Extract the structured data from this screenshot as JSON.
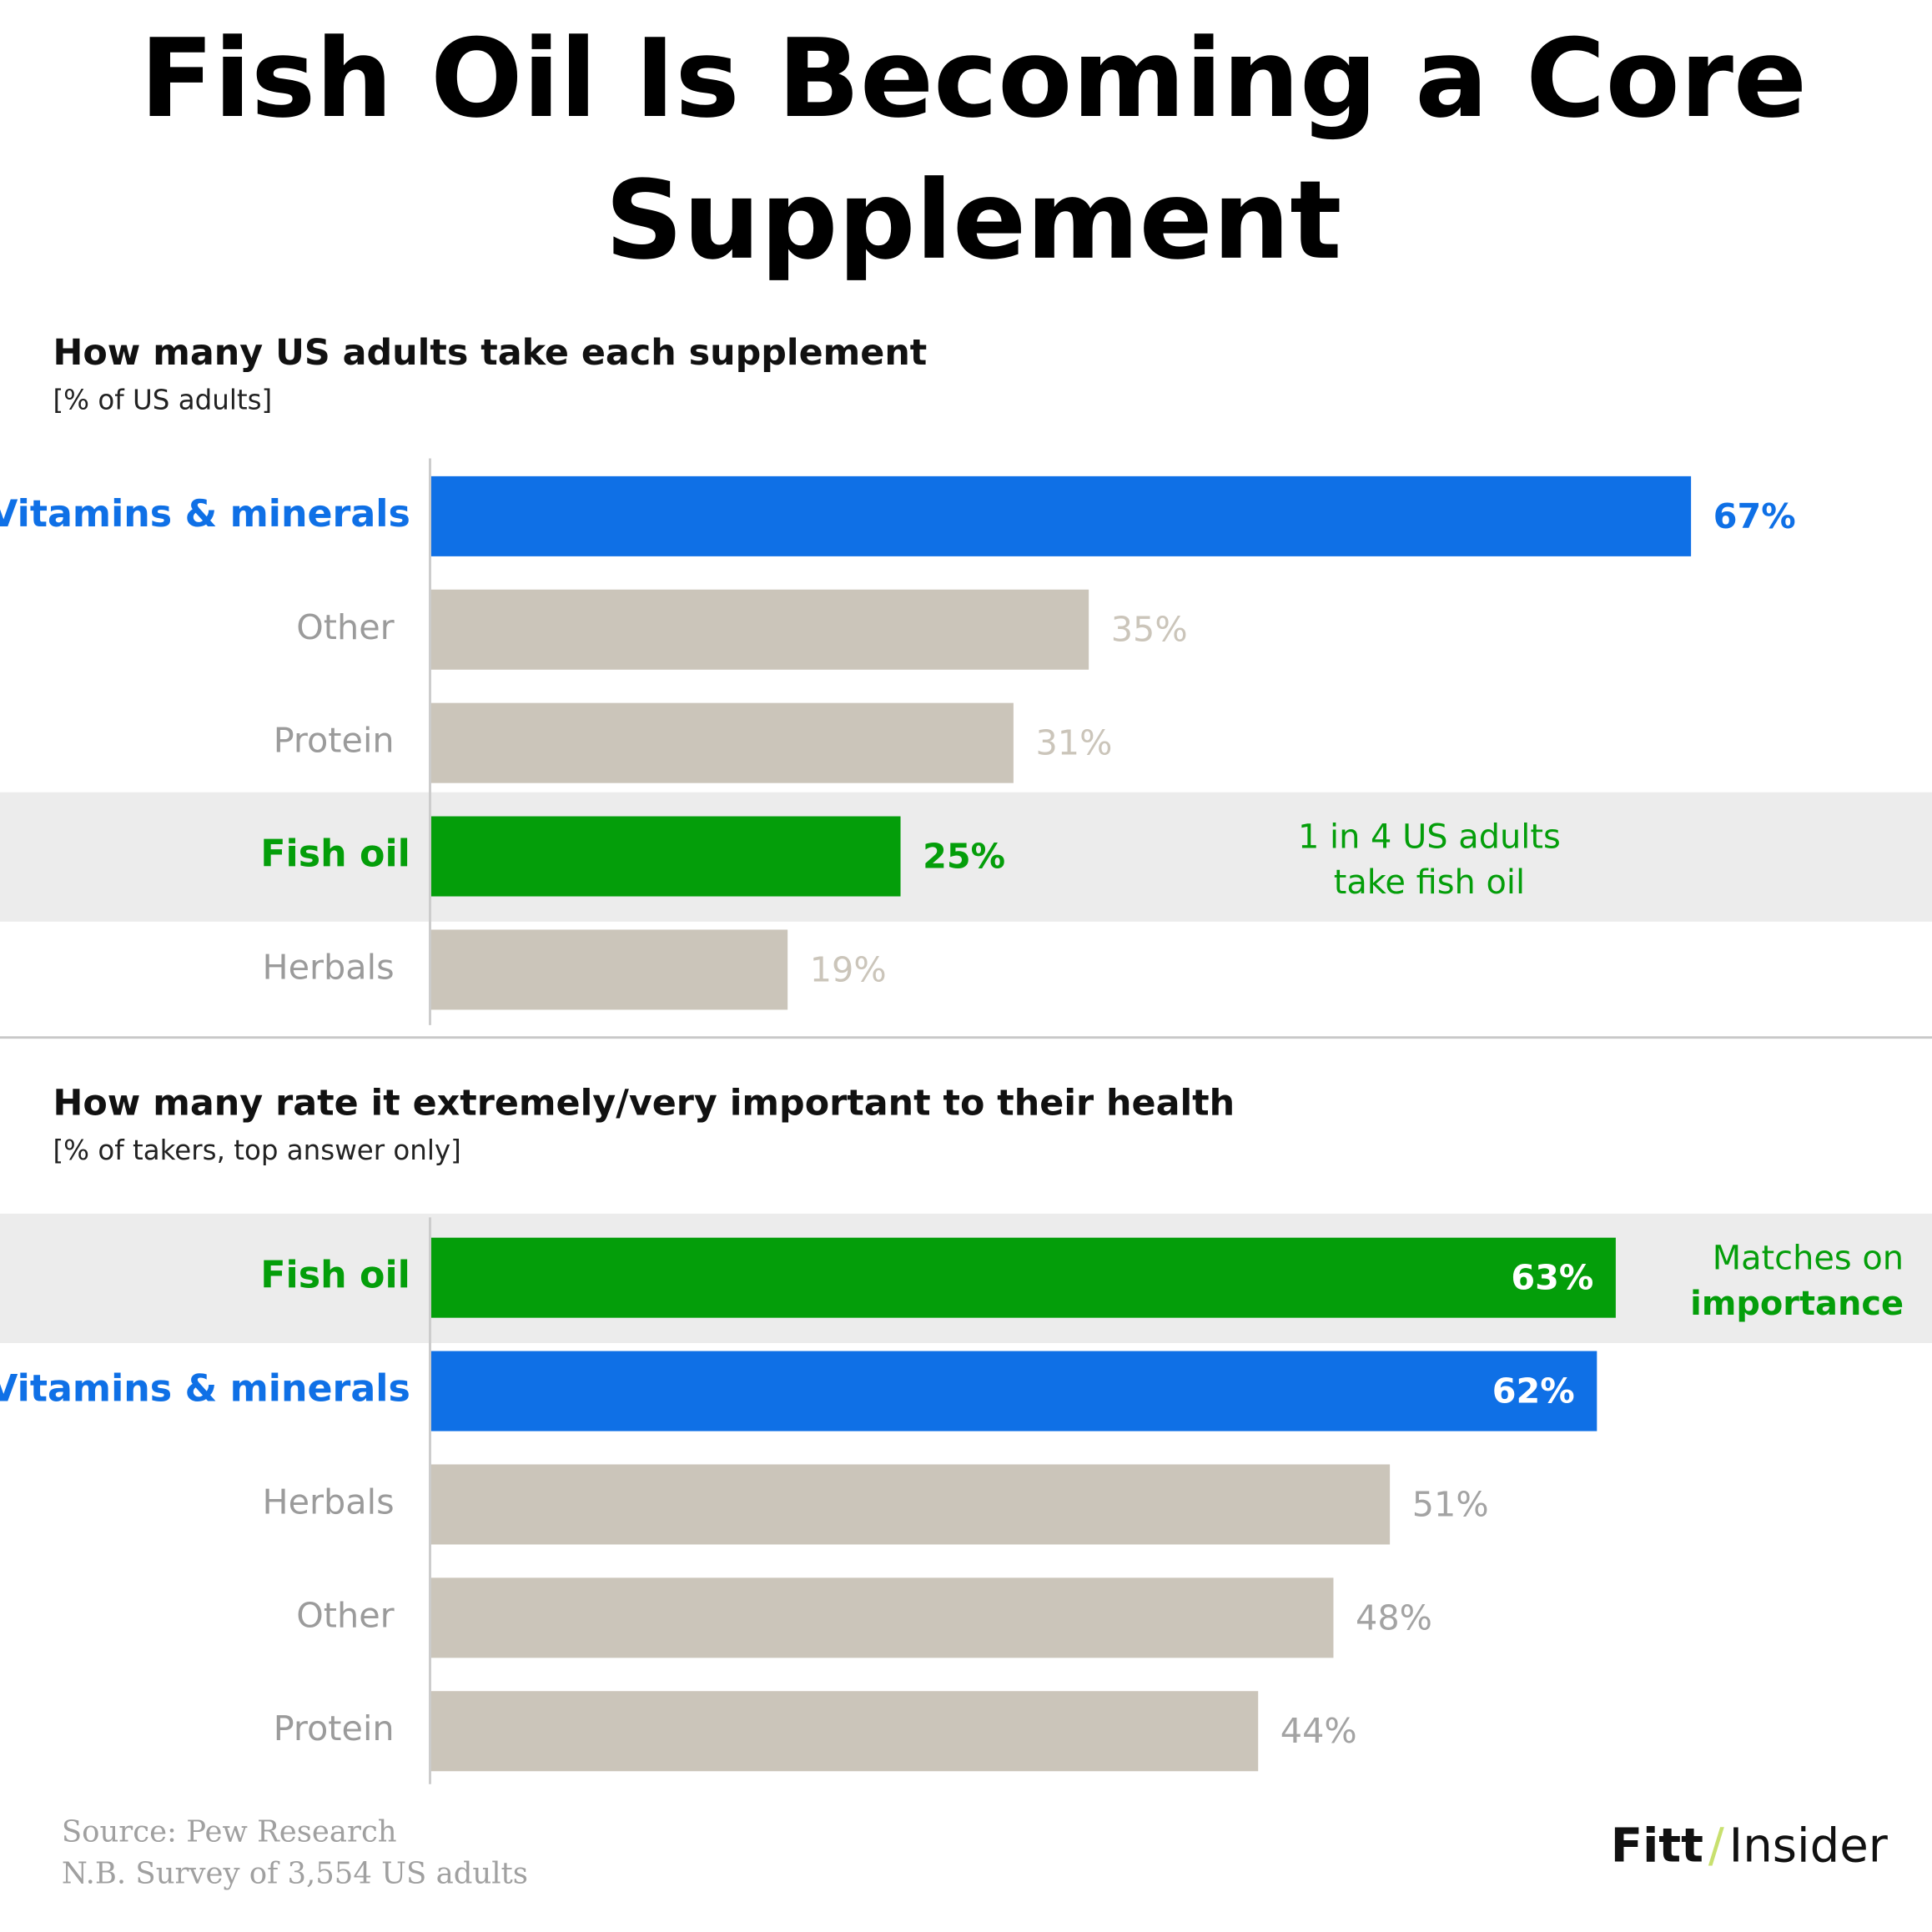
{
  "title": [
    "Fish Oil Is Becoming a Core",
    "Supplement"
  ],
  "chart_data": [
    {
      "type": "bar",
      "orientation": "horizontal",
      "title": "How many US adults take each supplement",
      "subtitle": "[% of US adults]",
      "categories": [
        "Vitamins & minerals",
        "Other",
        "Protein",
        "Fish oil",
        "Herbals"
      ],
      "values": [
        67,
        35,
        31,
        25,
        19
      ],
      "value_labels": [
        "67%",
        "35%",
        "31%",
        "25%",
        "19%"
      ],
      "colors": [
        "#0f70e6",
        "#cbc5ba",
        "#cbc5ba",
        "#049e0a",
        "#cbc5ba"
      ],
      "label_colors": [
        "#0f70e6",
        "#9b9b9b",
        "#9b9b9b",
        "#049e0a",
        "#9b9b9b"
      ],
      "value_label_colors": [
        "#0f70e6",
        "#cbc5ba",
        "#cbc5ba",
        "#049e0a",
        "#cbc5ba"
      ],
      "value_label_position": [
        "outside",
        "outside",
        "outside",
        "outside",
        "outside"
      ],
      "highlight": 3,
      "xlim": [
        0,
        80
      ],
      "annotation": [
        "1 in 4 US adults",
        "take fish oil"
      ]
    },
    {
      "type": "bar",
      "orientation": "horizontal",
      "title": "How many rate it extremely/very important to their health",
      "subtitle": "[% of takers, top answer only]",
      "categories": [
        "Fish oil",
        "Vitamins & minerals",
        "Herbals",
        "Other",
        "Protein"
      ],
      "values": [
        63,
        62,
        51,
        48,
        44
      ],
      "value_labels": [
        "63%",
        "62%",
        "51%",
        "48%",
        "44%"
      ],
      "colors": [
        "#049e0a",
        "#0f70e6",
        "#cbc5ba",
        "#cbc5ba",
        "#cbc5ba"
      ],
      "label_colors": [
        "#049e0a",
        "#0f70e6",
        "#9b9b9b",
        "#9b9b9b",
        "#9b9b9b"
      ],
      "value_label_colors": [
        "#ffffff",
        "#ffffff",
        "#a3a3a3",
        "#a3a3a3",
        "#a3a3a3"
      ],
      "value_label_position": [
        "inside",
        "inside",
        "outside",
        "outside",
        "outside"
      ],
      "highlight": 0,
      "xlim": [
        0,
        80
      ],
      "annotation": [
        "Matches on",
        "importance"
      ]
    }
  ],
  "source": "Source: Pew Research",
  "note": "N.B. Survey of 3,554 US adults",
  "logo": {
    "left": "Fitt",
    "separator": "/",
    "right": "Insider"
  }
}
